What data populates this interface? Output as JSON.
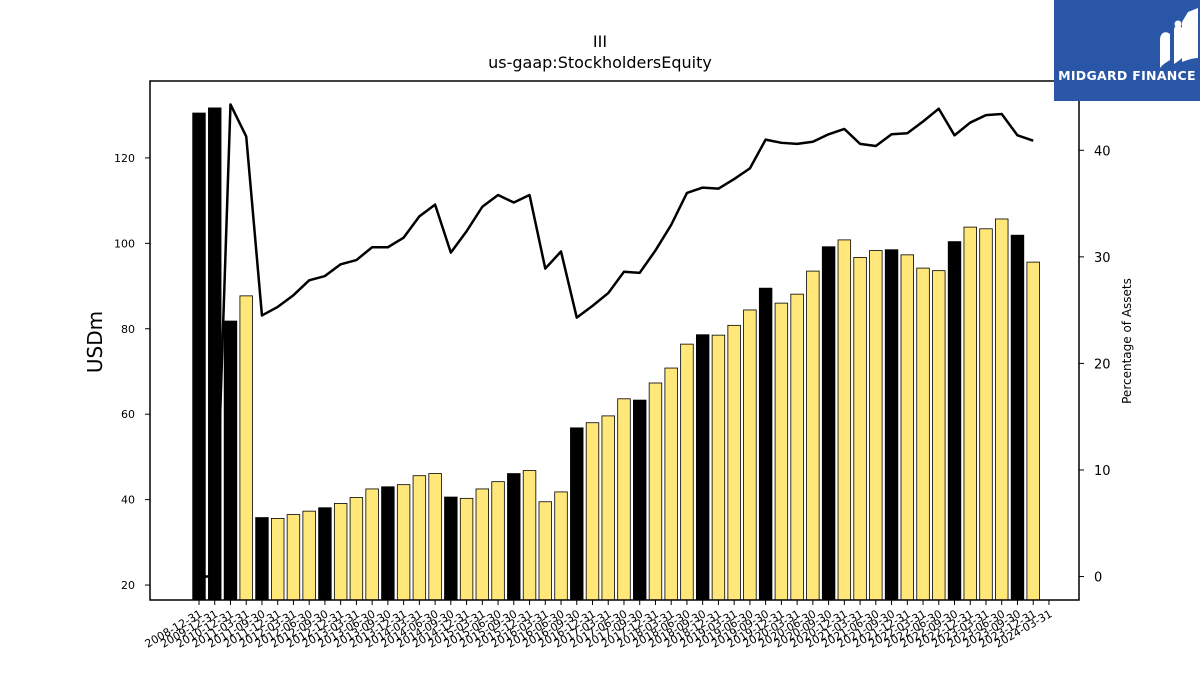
{
  "chart_data": {
    "type": "bar",
    "title": "III",
    "subtitle": "us-gaap:StockholdersEquity",
    "ylabel": "USDm",
    "y2label": "Percentage of Assets",
    "ylim": [
      16.5,
      138
    ],
    "y2lim": [
      -2.2,
      46.5
    ],
    "yticks": [
      20,
      40,
      60,
      80,
      100,
      120
    ],
    "y2ticks": [
      0,
      10,
      20,
      30,
      40
    ],
    "categories": [
      "2008-12-31",
      "2009-12-31",
      "2010-12-31",
      "2011-03-31",
      "2011-09-30",
      "2011-12-31",
      "2012-03-31",
      "2012-06-30",
      "2012-09-30",
      "2012-12-31",
      "2013-03-31",
      "2013-06-30",
      "2013-09-30",
      "2013-12-31",
      "2014-03-31",
      "2014-06-30",
      "2014-09-30",
      "2014-12-31",
      "2015-03-31",
      "2015-06-30",
      "2015-09-30",
      "2015-12-31",
      "2016-03-31",
      "2016-06-30",
      "2016-09-30",
      "2016-12-31",
      "2017-03-31",
      "2017-06-30",
      "2017-09-30",
      "2017-12-31",
      "2018-03-31",
      "2018-06-30",
      "2018-09-30",
      "2018-12-31",
      "2019-03-31",
      "2019-06-30",
      "2019-09-30",
      "2019-12-31",
      "2020-03-31",
      "2020-06-30",
      "2020-09-30",
      "2020-12-31",
      "2021-03-31",
      "2021-06-30",
      "2021-09-30",
      "2021-12-31",
      "2022-03-31",
      "2022-06-30",
      "2022-09-30",
      "2022-12-31",
      "2023-03-31",
      "2023-06-30",
      "2023-09-30",
      "2023-12-31",
      "2024-03-31"
    ],
    "series": [
      {
        "type": "bar",
        "axis": "left",
        "values": [
          130.5,
          131.7,
          81.8,
          87.7,
          35.8,
          35.6,
          36.5,
          37.3,
          38.1,
          39.1,
          40.5,
          42.5,
          43.0,
          43.5,
          45.6,
          46.1,
          40.6,
          40.3,
          42.5,
          44.2,
          46.1,
          46.8,
          39.5,
          41.8,
          56.8,
          58.0,
          59.6,
          63.6,
          63.3,
          67.3,
          70.8,
          76.4,
          78.6,
          78.5,
          80.8,
          84.4,
          89.5,
          86.0,
          88.1,
          93.5,
          99.2,
          100.8,
          96.7,
          98.3,
          98.5,
          97.3,
          94.2,
          93.6,
          100.4,
          103.8,
          103.4,
          105.7,
          101.9,
          95.6,
          null
        ],
        "colors": [
          "black",
          "black",
          "black",
          "yellow",
          "black",
          "yellow",
          "yellow",
          "yellow",
          "black",
          "yellow",
          "yellow",
          "yellow",
          "black",
          "yellow",
          "yellow",
          "yellow",
          "black",
          "yellow",
          "yellow",
          "yellow",
          "black",
          "yellow",
          "yellow",
          "yellow",
          "black",
          "yellow",
          "yellow",
          "yellow",
          "black",
          "yellow",
          "yellow",
          "yellow",
          "black",
          "yellow",
          "yellow",
          "yellow",
          "black",
          "yellow",
          "yellow",
          "yellow",
          "black",
          "yellow",
          "yellow",
          "yellow",
          "black",
          "yellow",
          "yellow",
          "yellow",
          "black",
          "yellow",
          "yellow",
          "yellow",
          "black",
          "yellow",
          "yellow"
        ]
      },
      {
        "type": "line",
        "axis": "right",
        "values": [
          0.0,
          0.0,
          44.3,
          41.3,
          24.5,
          25.3,
          26.4,
          27.8,
          28.2,
          29.3,
          29.7,
          30.9,
          30.9,
          31.8,
          33.8,
          34.9,
          30.4,
          32.4,
          34.7,
          35.8,
          35.1,
          35.8,
          28.9,
          30.5,
          24.3,
          25.4,
          26.6,
          28.6,
          28.5,
          30.6,
          33.0,
          36.0,
          36.5,
          36.4,
          37.3,
          38.3,
          41.0,
          40.7,
          40.6,
          40.8,
          41.5,
          42.0,
          40.6,
          40.4,
          41.5,
          41.6,
          42.7,
          43.9,
          41.4,
          42.6,
          43.3,
          43.4,
          41.4,
          40.9,
          null
        ]
      }
    ],
    "legend": "none",
    "grid": false,
    "colors": {
      "black": "#000000",
      "yellow": "#ffe77a",
      "line": "#000000"
    }
  },
  "logo": {
    "text": "MIDGARD FINANCE",
    "background": "#2a56a8"
  }
}
